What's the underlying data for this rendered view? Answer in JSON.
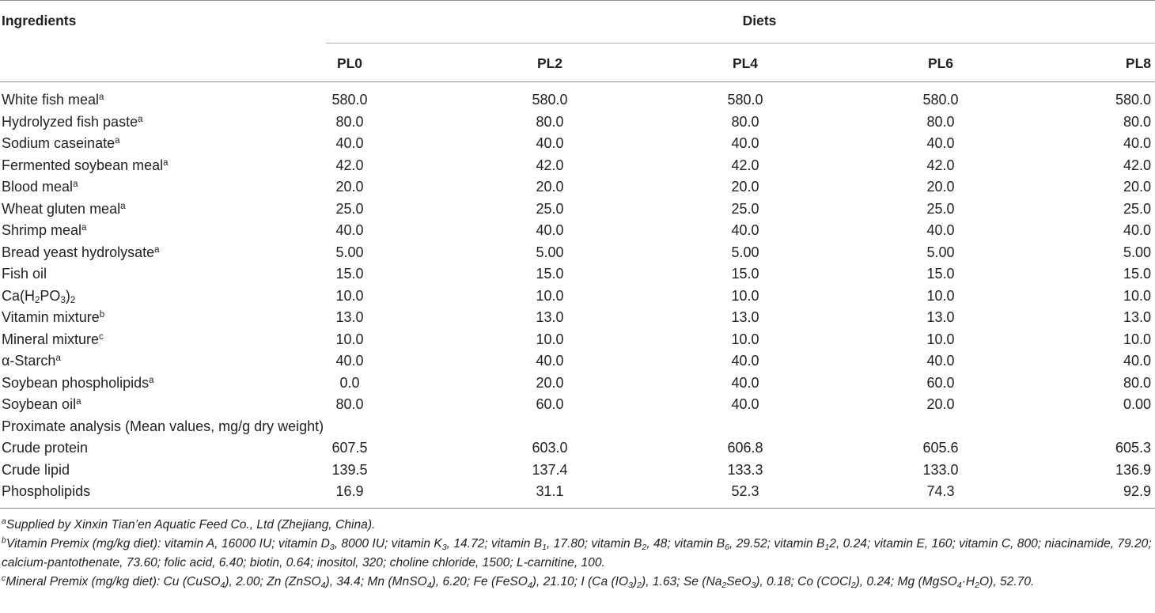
{
  "table": {
    "ingredients_header": "Ingredients",
    "diets_header": "Diets",
    "columns": [
      "PL0",
      "PL2",
      "PL4",
      "PL6",
      "PL8"
    ],
    "rows": [
      {
        "label": "White fish meal",
        "sup": "a",
        "values": [
          "580.0",
          "580.0",
          "580.0",
          "580.0",
          "580.0"
        ]
      },
      {
        "label": "Hydrolyzed fish paste",
        "sup": "a",
        "values": [
          "80.0",
          "80.0",
          "80.0",
          "80.0",
          "80.0"
        ]
      },
      {
        "label": "Sodium caseinate",
        "sup": "a",
        "values": [
          "40.0",
          "40.0",
          "40.0",
          "40.0",
          "40.0"
        ]
      },
      {
        "label": "Fermented soybean meal",
        "sup": "a",
        "values": [
          "42.0",
          "42.0",
          "42.0",
          "42.0",
          "42.0"
        ]
      },
      {
        "label": "Blood meal",
        "sup": "a",
        "values": [
          "20.0",
          "20.0",
          "20.0",
          "20.0",
          "20.0"
        ]
      },
      {
        "label": "Wheat gluten meal",
        "sup": "a",
        "values": [
          "25.0",
          "25.0",
          "25.0",
          "25.0",
          "25.0"
        ]
      },
      {
        "label": "Shrimp meal",
        "sup": "a",
        "values": [
          "40.0",
          "40.0",
          "40.0",
          "40.0",
          "40.0"
        ]
      },
      {
        "label": "Bread yeast hydrolysate",
        "sup": "a",
        "values": [
          "5.00",
          "5.00",
          "5.00",
          "5.00",
          "5.00"
        ]
      },
      {
        "label": "Fish oil",
        "sup": "",
        "values": [
          "15.0",
          "15.0",
          "15.0",
          "15.0",
          "15.0"
        ]
      },
      {
        "label": "Ca(H2PO3)2",
        "sup": "",
        "values": [
          "10.0",
          "10.0",
          "10.0",
          "10.0",
          "10.0"
        ]
      },
      {
        "label": "Vitamin mixture",
        "sup": "b",
        "values": [
          "13.0",
          "13.0",
          "13.0",
          "13.0",
          "13.0"
        ]
      },
      {
        "label": "Mineral mixture",
        "sup": "c",
        "values": [
          "10.0",
          "10.0",
          "10.0",
          "10.0",
          "10.0"
        ]
      },
      {
        "label": "α-Starch",
        "sup": "a",
        "values": [
          "40.0",
          "40.0",
          "40.0",
          "40.0",
          "40.0"
        ]
      },
      {
        "label": "Soybean phospholipids",
        "sup": "a",
        "values": [
          "0.0",
          "20.0",
          "40.0",
          "60.0",
          "80.0"
        ]
      },
      {
        "label": "Soybean oil",
        "sup": "a",
        "values": [
          "80.0",
          "60.0",
          "40.0",
          "20.0",
          "0.00"
        ]
      },
      {
        "label": "Proximate analysis (Mean values, mg/g dry weight)",
        "sup": "",
        "values": []
      },
      {
        "label": "Crude protein",
        "sup": "",
        "values": [
          "607.5",
          "603.0",
          "606.8",
          "605.6",
          "605.3"
        ]
      },
      {
        "label": "Crude lipid",
        "sup": "",
        "values": [
          "139.5",
          "137.4",
          "133.3",
          "133.0",
          "136.9"
        ]
      },
      {
        "label": "Phospholipids",
        "sup": "",
        "values": [
          "16.9",
          "31.1",
          "52.3",
          "74.3",
          "92.9"
        ]
      }
    ]
  },
  "footnotes": {
    "a": {
      "mark": "a",
      "text": "Supplied by Xinxin Tian’en Aquatic Feed Co., Ltd (Zhejiang, China)."
    },
    "b": {
      "mark": "b",
      "text": "Vitamin Premix (mg/kg diet): vitamin A, 16000 IU; vitamin D3, 8000 IU; vitamin K3, 14.72; vitamin B1, 17.80; vitamin B2, 48; vitamin B6, 29.52; vitamin B12, 0.24; vitamin E, 160; vitamin C, 800; niacinamide, 79.20; calcium-pantothenate, 73.60; folic acid, 6.40; biotin, 0.64; inositol, 320; choline chloride, 1500; L-carnitine, 100."
    },
    "c": {
      "mark": "c",
      "text": "Mineral Premix (mg/kg diet): Cu (CuSO4), 2.00; Zn (ZnSO4), 34.4; Mn (MnSO4), 6.20; Fe (FeSO4), 21.10; I (Ca (IO3)2), 1.63; Se (Na2SeO3), 0.18; Co (COCl2), 0.24; Mg (MgSO4·H2O), 52.70."
    }
  }
}
